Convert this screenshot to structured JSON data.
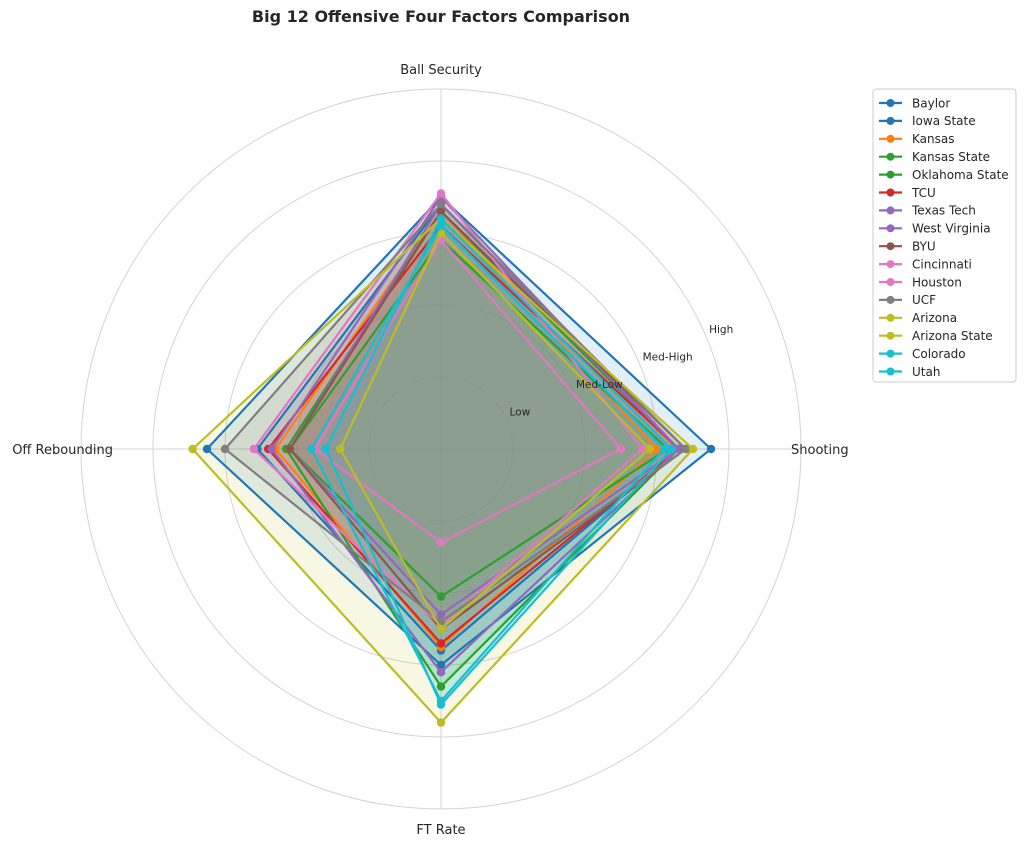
{
  "chart_data": {
    "type": "radar",
    "title": "Big 12 Offensive Four Factors Comparison",
    "axes": [
      "Shooting",
      "Ball Security",
      "Off Rebounding",
      "FT Rate"
    ],
    "ring_labels": [
      "Low",
      "Med-Low",
      "Med-High",
      "High"
    ],
    "rlim": [
      0,
      5
    ],
    "grid": true,
    "legend_position": "upper right, outside plot",
    "series": [
      {
        "name": "Baylor",
        "color": "#1f77b4",
        "values": [
          3.75,
          3.5,
          3.25,
          3.0
        ]
      },
      {
        "name": "Iowa State",
        "color": "#1f77b4",
        "values": [
          3.3,
          3.4,
          2.55,
          2.8
        ]
      },
      {
        "name": "Kansas",
        "color": "#ff7f0e",
        "values": [
          3.0,
          3.3,
          2.3,
          2.75
        ]
      },
      {
        "name": "Kansas State",
        "color": "#2ca02c",
        "values": [
          3.15,
          2.9,
          2.1,
          2.05
        ]
      },
      {
        "name": "Oklahoma State",
        "color": "#2ca02c",
        "values": [
          3.3,
          3.3,
          2.15,
          3.3
        ]
      },
      {
        "name": "TCU",
        "color": "#d62728",
        "values": [
          3.3,
          3.1,
          2.4,
          2.7
        ]
      },
      {
        "name": "Texas Tech",
        "color": "#9467bd",
        "values": [
          3.3,
          3.5,
          2.35,
          3.1
        ]
      },
      {
        "name": "West Virginia",
        "color": "#9467bd",
        "values": [
          3.3,
          3.4,
          2.1,
          2.3
        ]
      },
      {
        "name": "BYU",
        "color": "#8c564b",
        "values": [
          3.4,
          3.3,
          2.1,
          2.5
        ]
      },
      {
        "name": "Cincinnati",
        "color": "#e377c2",
        "values": [
          2.8,
          3.55,
          2.6,
          2.45
        ]
      },
      {
        "name": "Houston",
        "color": "#e377c2",
        "values": [
          2.5,
          2.9,
          1.75,
          1.3
        ]
      },
      {
        "name": "UCF",
        "color": "#7f7f7f",
        "values": [
          3.4,
          3.4,
          3.0,
          2.4
        ]
      },
      {
        "name": "Arizona",
        "color": "#bcbd22",
        "values": [
          3.5,
          3.2,
          3.45,
          3.8
        ]
      },
      {
        "name": "Arizona State",
        "color": "#bcbd22",
        "values": [
          2.9,
          3.0,
          1.4,
          2.5
        ]
      },
      {
        "name": "Colorado",
        "color": "#17becf",
        "values": [
          3.2,
          3.2,
          1.6,
          3.55
        ]
      },
      {
        "name": "Utah",
        "color": "#17becf",
        "values": [
          3.1,
          3.1,
          1.8,
          3.5
        ]
      }
    ]
  }
}
